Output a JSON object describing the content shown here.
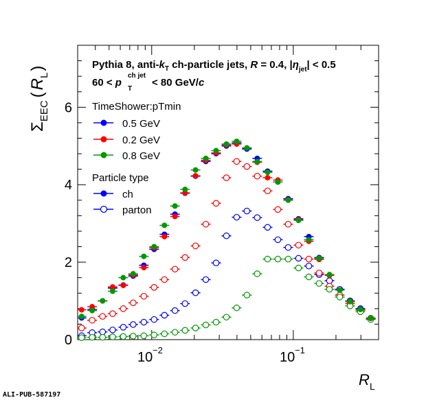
{
  "chart_data": {
    "type": "scatter",
    "xscale": "log",
    "xlim": [
      0.003,
      0.4
    ],
    "ylim": [
      0,
      7.6
    ],
    "x_ticks": [
      {
        "value": 0.01,
        "base": "10",
        "exp": "−2"
      },
      {
        "value": 0.1,
        "base": "10",
        "exp": "−1"
      }
    ],
    "y_ticks": [
      0,
      2,
      4,
      6
    ],
    "y_tick_labels": [
      "0",
      "2",
      "4",
      "6"
    ],
    "xlabel": {
      "main": "R",
      "sub": "L"
    },
    "ylabel": {
      "main": "Σ",
      "sub": "EEC",
      "paren_open": "(",
      "var": "R",
      "var_sub": "L",
      "paren_close": ")"
    },
    "annotation": {
      "line1_pre": "Pythia 8, anti-",
      "line1_k": "k",
      "line1_k_sub": "T",
      "line1_mid": " ch-particle jets,  ",
      "line1_R": "R",
      "line1_post": " = 0.4, |",
      "line1_eta": "η",
      "line1_eta_sub": "jet",
      "line1_end": "| < 0.5",
      "line2_pre": "60 < ",
      "line2_p": "p",
      "line2_sup": "ch jet",
      "line2_sub": "T",
      "line2_post": " < 80 GeV/",
      "line2_c": "c"
    },
    "legend_color_title": "TimeShower:pTmin",
    "legend_type_title": "Particle type",
    "legend_type_entries": [
      "ch",
      "parton"
    ],
    "colors": {
      "0.5 GeV": "#0000ff",
      "0.2 GeV": "#ff0000",
      "0.8 GeV": "#009900"
    },
    "series": [
      {
        "name": "0.5 GeV",
        "type": "ch",
        "x": [
          0.0032,
          0.0038,
          0.0045,
          0.0053,
          0.0063,
          0.0074,
          0.0088,
          0.0104,
          0.0123,
          0.0146,
          0.0172,
          0.0204,
          0.0241,
          0.0285,
          0.0337,
          0.0398,
          0.047,
          0.0556,
          0.0658,
          0.0778,
          0.092,
          0.1088,
          0.1287,
          0.1522,
          0.18,
          0.2128,
          0.2517,
          0.2977,
          0.352
        ],
        "y": [
          0.56,
          0.78,
          1.0,
          1.33,
          1.41,
          1.64,
          1.92,
          2.33,
          2.72,
          3.24,
          3.78,
          4.22,
          4.6,
          4.8,
          5.0,
          5.08,
          4.92,
          4.68,
          4.35,
          4.07,
          3.64,
          3.12,
          2.66,
          2.12,
          1.66,
          1.28,
          0.99,
          0.79,
          0.55
        ]
      },
      {
        "name": "0.2 GeV",
        "type": "ch",
        "x": [
          0.0032,
          0.0038,
          0.0045,
          0.0053,
          0.0063,
          0.0074,
          0.0088,
          0.0104,
          0.0123,
          0.0146,
          0.0172,
          0.0204,
          0.0241,
          0.0285,
          0.0337,
          0.0398,
          0.047,
          0.0556,
          0.0658,
          0.0778,
          0.092,
          0.1088,
          0.1287,
          0.1522,
          0.18,
          0.2128,
          0.2517,
          0.2977,
          0.352
        ],
        "y": [
          0.77,
          0.85,
          1.0,
          1.36,
          1.4,
          1.67,
          1.86,
          2.37,
          2.66,
          3.18,
          3.79,
          4.23,
          4.63,
          4.82,
          5.03,
          5.05,
          4.95,
          4.58,
          4.18,
          4.12,
          3.61,
          3.1,
          2.54,
          2.07,
          1.66,
          1.28,
          0.98,
          0.78,
          0.55
        ]
      },
      {
        "name": "0.8 GeV",
        "type": "ch",
        "x": [
          0.0032,
          0.0038,
          0.0045,
          0.0053,
          0.0063,
          0.0074,
          0.0088,
          0.0104,
          0.0123,
          0.0146,
          0.0172,
          0.0204,
          0.0241,
          0.0285,
          0.0337,
          0.0398,
          0.047,
          0.0556,
          0.0658,
          0.0778,
          0.092,
          0.1088,
          0.1287,
          0.1522,
          0.18,
          0.2128,
          0.2517,
          0.2977,
          0.352
        ],
        "y": [
          0.6,
          0.75,
          1.0,
          1.25,
          1.6,
          1.7,
          2.15,
          2.4,
          2.95,
          3.45,
          3.88,
          4.38,
          4.68,
          4.88,
          5.05,
          5.12,
          4.95,
          4.6,
          4.32,
          4.07,
          3.6,
          3.08,
          2.58,
          2.1,
          1.68,
          1.28,
          0.99,
          0.78,
          0.56
        ]
      },
      {
        "name": "0.5 GeV",
        "type": "parton",
        "x": [
          0.0032,
          0.0038,
          0.0045,
          0.0053,
          0.0063,
          0.0074,
          0.0088,
          0.0104,
          0.0123,
          0.0146,
          0.0172,
          0.0204,
          0.0241,
          0.0285,
          0.0337,
          0.0398,
          0.047,
          0.0556,
          0.0658,
          0.0778,
          0.092,
          0.1088,
          0.1287,
          0.1522,
          0.18,
          0.2128,
          0.2517,
          0.2977,
          0.352
        ],
        "y": [
          0.1,
          0.18,
          0.2,
          0.25,
          0.32,
          0.39,
          0.45,
          0.52,
          0.63,
          0.75,
          0.93,
          1.21,
          1.55,
          1.98,
          2.68,
          3.16,
          3.32,
          3.15,
          2.9,
          2.58,
          2.38,
          2.1,
          1.9,
          1.68,
          1.52,
          1.3,
          1.0,
          0.8,
          0.55
        ]
      },
      {
        "name": "0.2 GeV",
        "type": "parton",
        "x": [
          0.0032,
          0.0038,
          0.0045,
          0.0053,
          0.0063,
          0.0074,
          0.0088,
          0.0104,
          0.0123,
          0.0146,
          0.0172,
          0.0204,
          0.0241,
          0.0285,
          0.0337,
          0.0398,
          0.047,
          0.0556,
          0.0658,
          0.0778,
          0.092,
          0.1088,
          0.1287,
          0.1522,
          0.18,
          0.2128,
          0.2517,
          0.2977,
          0.352
        ],
        "y": [
          0.3,
          0.5,
          0.6,
          0.67,
          0.8,
          0.95,
          1.12,
          1.35,
          1.55,
          1.82,
          2.12,
          2.42,
          2.98,
          3.52,
          4.18,
          4.6,
          4.47,
          4.22,
          3.84,
          3.36,
          2.98,
          2.44,
          2.08,
          1.72,
          1.38,
          1.15,
          0.93,
          0.76,
          0.55
        ]
      },
      {
        "name": "0.8 GeV",
        "type": "parton",
        "x": [
          0.0032,
          0.0038,
          0.0045,
          0.0053,
          0.0063,
          0.0074,
          0.0088,
          0.0104,
          0.0123,
          0.0146,
          0.0172,
          0.0204,
          0.0241,
          0.0285,
          0.0337,
          0.0398,
          0.047,
          0.0556,
          0.0658,
          0.0778,
          0.092,
          0.1088,
          0.1287,
          0.1522,
          0.18,
          0.2128,
          0.2517,
          0.2977,
          0.352
        ],
        "y": [
          0.05,
          0.06,
          0.06,
          0.07,
          0.08,
          0.09,
          0.1,
          0.12,
          0.15,
          0.19,
          0.24,
          0.3,
          0.38,
          0.45,
          0.58,
          0.82,
          1.15,
          1.7,
          2.08,
          2.08,
          2.08,
          1.85,
          1.62,
          1.45,
          1.3,
          1.1,
          0.87,
          0.72,
          0.52
        ]
      }
    ]
  },
  "footer_label": "ALI-PUB-587197"
}
